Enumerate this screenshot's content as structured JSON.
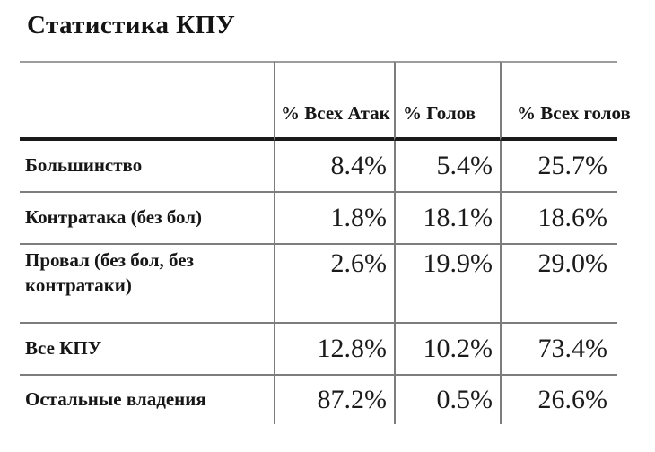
{
  "page": {
    "title": "Статистика КПУ",
    "background_color": "#ffffff",
    "text_color": "#161616",
    "thin_line_color": "#7d7d7d",
    "thick_line_color": "#1a1a1a"
  },
  "table": {
    "column_headers": [
      "% Всех Атак",
      "% Голов",
      "% Всех голов"
    ],
    "rows": [
      {
        "label": "Большинство",
        "values": [
          "8.4%",
          "5.4%",
          "25.7%"
        ]
      },
      {
        "label": "Контратака (без бол)",
        "values": [
          "1.8%",
          "18.1%",
          "18.6%"
        ]
      },
      {
        "label": "Провал (без бол, без контратаки)",
        "values": [
          "2.6%",
          "19.9%",
          "29.0%"
        ]
      },
      {
        "label": "Все КПУ",
        "values": [
          "12.8%",
          "10.2%",
          "73.4%"
        ]
      },
      {
        "label": "Остальные владения",
        "values": [
          "87.2%",
          "0.5%",
          "26.6%"
        ]
      }
    ]
  }
}
